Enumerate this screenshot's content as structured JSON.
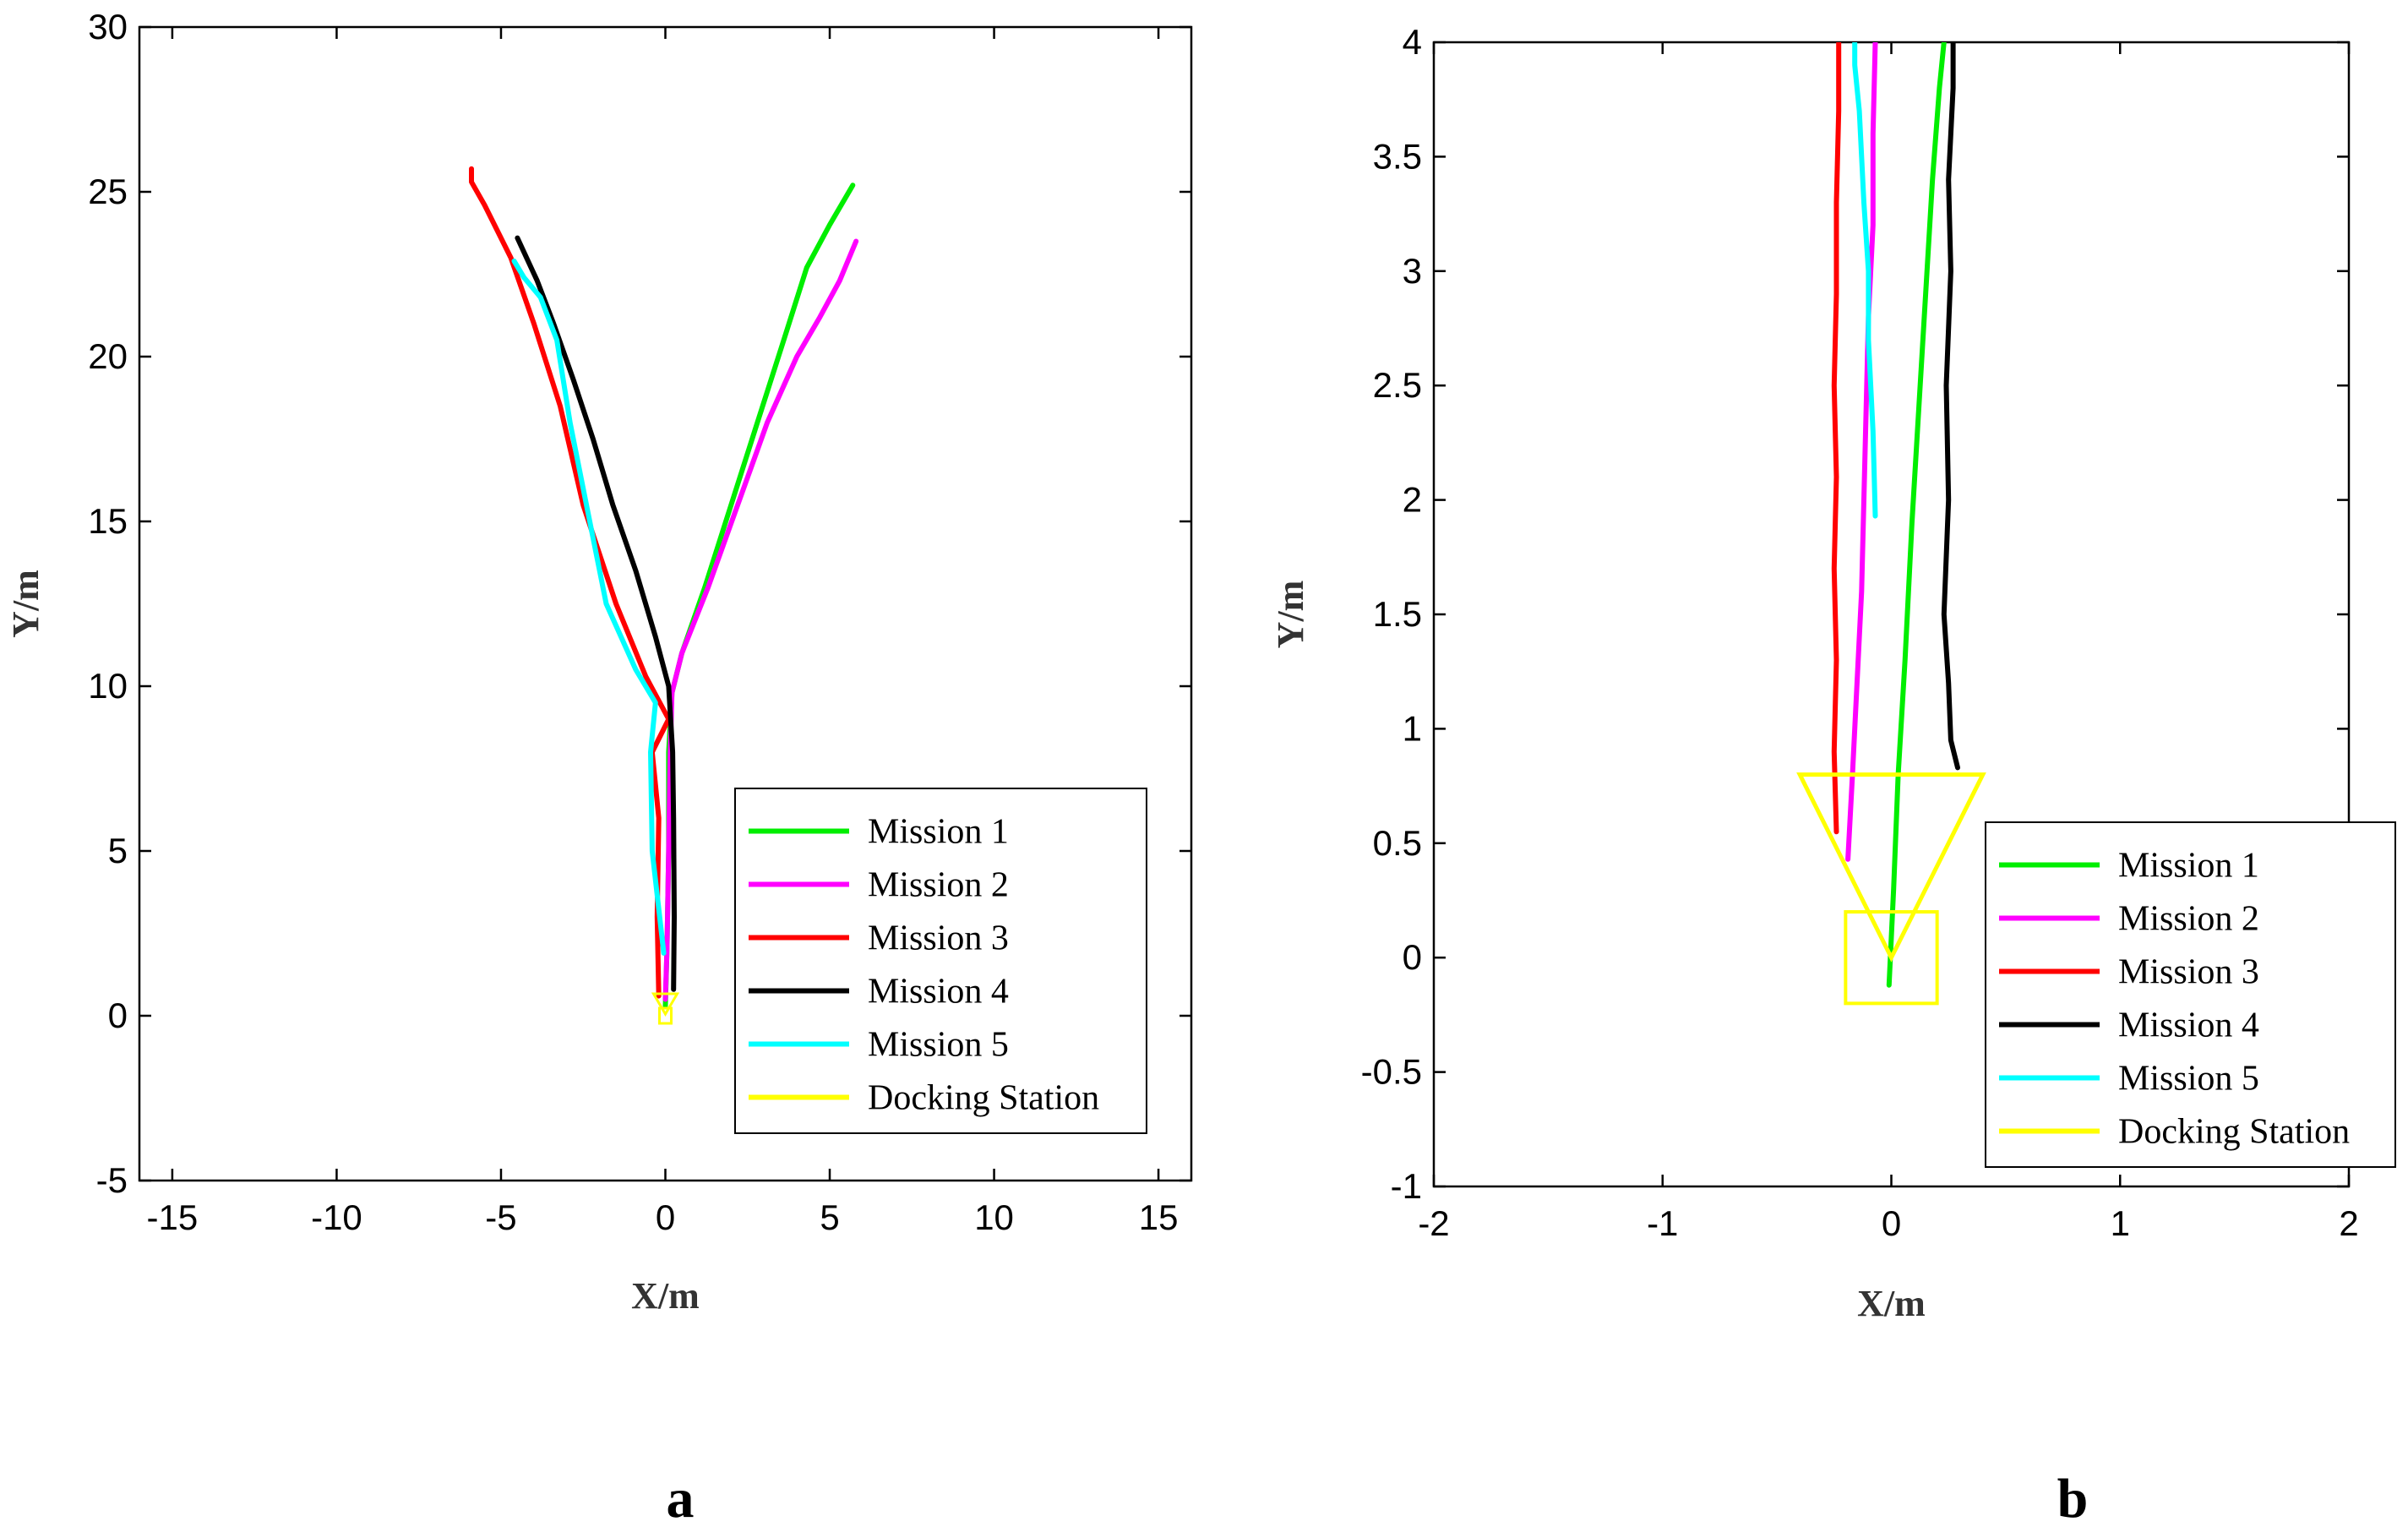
{
  "chart_data": [
    {
      "type": "line",
      "panel": "a",
      "xlabel": "X/m",
      "ylabel": "Y/m",
      "xlim": [
        -16,
        16
      ],
      "ylim": [
        -5,
        30
      ],
      "xticks": [
        -15,
        -10,
        -5,
        0,
        5,
        10,
        15
      ],
      "yticks": [
        -5,
        0,
        5,
        10,
        15,
        20,
        25,
        30
      ],
      "grid": false,
      "legend": "bottom-right",
      "series": [
        {
          "name": "Mission 1",
          "color": "#00ee00",
          "x": [
            0.0,
            0.05,
            0.1,
            0.1,
            0.2,
            0.5,
            1.2,
            2.0,
            2.8,
            3.6,
            4.3,
            5.0,
            5.7
          ],
          "y": [
            0.3,
            2,
            5,
            8,
            9.8,
            11,
            13,
            15.5,
            18,
            20.5,
            22.7,
            24,
            25.2
          ]
        },
        {
          "name": "Mission 2",
          "color": "#ff00ff",
          "x": [
            0.0,
            0.05,
            0.1,
            0.15,
            0.2,
            0.5,
            1.3,
            2.2,
            3.1,
            4.0,
            4.7,
            5.3,
            5.8
          ],
          "y": [
            0.5,
            2,
            5,
            8,
            9.8,
            11,
            13,
            15.5,
            18,
            20,
            21.2,
            22.3,
            23.5
          ]
        },
        {
          "name": "Mission 3",
          "color": "#ff0000",
          "x": [
            -0.2,
            -0.25,
            -0.2,
            -0.4,
            0.1,
            -0.6,
            -1.5,
            -2.5,
            -3.2,
            -4.0,
            -4.7,
            -5.5,
            -5.9,
            -5.9
          ],
          "y": [
            0.6,
            3,
            6,
            8,
            9,
            10.3,
            12.5,
            15.5,
            18.5,
            21,
            23,
            24.6,
            25.3,
            25.7
          ]
        },
        {
          "name": "Mission 4",
          "color": "#000000",
          "x": [
            0.25,
            0.27,
            0.25,
            0.22,
            0.1,
            -0.3,
            -0.9,
            -1.6,
            -2.2,
            -2.8,
            -3.4,
            -3.9,
            -4.5
          ],
          "y": [
            0.8,
            3,
            6,
            8,
            10,
            11.5,
            13.5,
            15.5,
            17.5,
            19.3,
            21,
            22.3,
            23.6
          ]
        },
        {
          "name": "Mission 5",
          "color": "#00ffff",
          "x": [
            -0.05,
            -0.4,
            -0.45,
            -0.3,
            -0.9,
            -1.8,
            -2.4,
            -2.9,
            -3.3,
            -3.8,
            -4.3,
            -4.6
          ],
          "y": [
            1.9,
            5,
            8,
            9.5,
            10.5,
            12.5,
            15.5,
            18,
            20.5,
            21.8,
            22.4,
            22.9
          ]
        }
      ],
      "docking_station": {
        "name": "Docking Station",
        "color": "#ffff00"
      }
    },
    {
      "type": "line",
      "panel": "b",
      "xlabel": "X/m",
      "ylabel": "Y/m",
      "xlim": [
        -2,
        2
      ],
      "ylim": [
        -1,
        4
      ],
      "xticks": [
        -2,
        -1,
        0,
        1,
        2
      ],
      "yticks": [
        -1,
        -0.5,
        0,
        0.5,
        1,
        1.5,
        2,
        2.5,
        3,
        3.5,
        4
      ],
      "grid": false,
      "legend": "bottom-right",
      "series": [
        {
          "name": "Mission 1",
          "color": "#00ee00",
          "x": [
            -0.01,
            0.01,
            0.03,
            0.06,
            0.09,
            0.12,
            0.15,
            0.18,
            0.21,
            0.23
          ],
          "y": [
            -0.12,
            0.3,
            0.8,
            1.3,
            1.9,
            2.4,
            2.9,
            3.4,
            3.8,
            4.0
          ]
        },
        {
          "name": "Mission 2",
          "color": "#ff00ff",
          "x": [
            -0.19,
            -0.17,
            -0.15,
            -0.13,
            -0.12,
            -0.11,
            -0.1,
            -0.08,
            -0.08,
            -0.07
          ],
          "y": [
            0.43,
            0.8,
            1.2,
            1.6,
            2.0,
            2.4,
            2.8,
            3.2,
            3.6,
            4.0
          ]
        },
        {
          "name": "Mission 3",
          "color": "#ff0000",
          "x": [
            -0.24,
            -0.25,
            -0.24,
            -0.25,
            -0.24,
            -0.25,
            -0.24,
            -0.24,
            -0.23,
            -0.23
          ],
          "y": [
            0.55,
            0.9,
            1.3,
            1.7,
            2.1,
            2.5,
            2.9,
            3.3,
            3.7,
            4.0
          ]
        },
        {
          "name": "Mission 4",
          "color": "#000000",
          "x": [
            0.29,
            0.26,
            0.25,
            0.23,
            0.25,
            0.24,
            0.26,
            0.25,
            0.27,
            0.27
          ],
          "y": [
            0.83,
            0.95,
            1.2,
            1.5,
            2.0,
            2.5,
            3.0,
            3.4,
            3.8,
            4.0
          ]
        },
        {
          "name": "Mission 5",
          "color": "#00ffff",
          "x": [
            -0.07,
            -0.08,
            -0.1,
            -0.1,
            -0.12,
            -0.13,
            -0.14,
            -0.16,
            -0.16
          ],
          "y": [
            1.93,
            2.3,
            2.7,
            3.0,
            3.3,
            3.5,
            3.7,
            3.9,
            4.0
          ]
        }
      ],
      "docking_station": {
        "name": "Docking Station",
        "color": "#ffff00",
        "triangle_x": [
          -0.4,
          0.4,
          0.0
        ],
        "triangle_y": [
          0.8,
          0.8,
          0.0
        ],
        "box_x": [
          -0.2,
          0.2
        ],
        "box_y": [
          -0.2,
          0.2
        ]
      }
    }
  ],
  "panel_labels": [
    "a",
    "b"
  ]
}
